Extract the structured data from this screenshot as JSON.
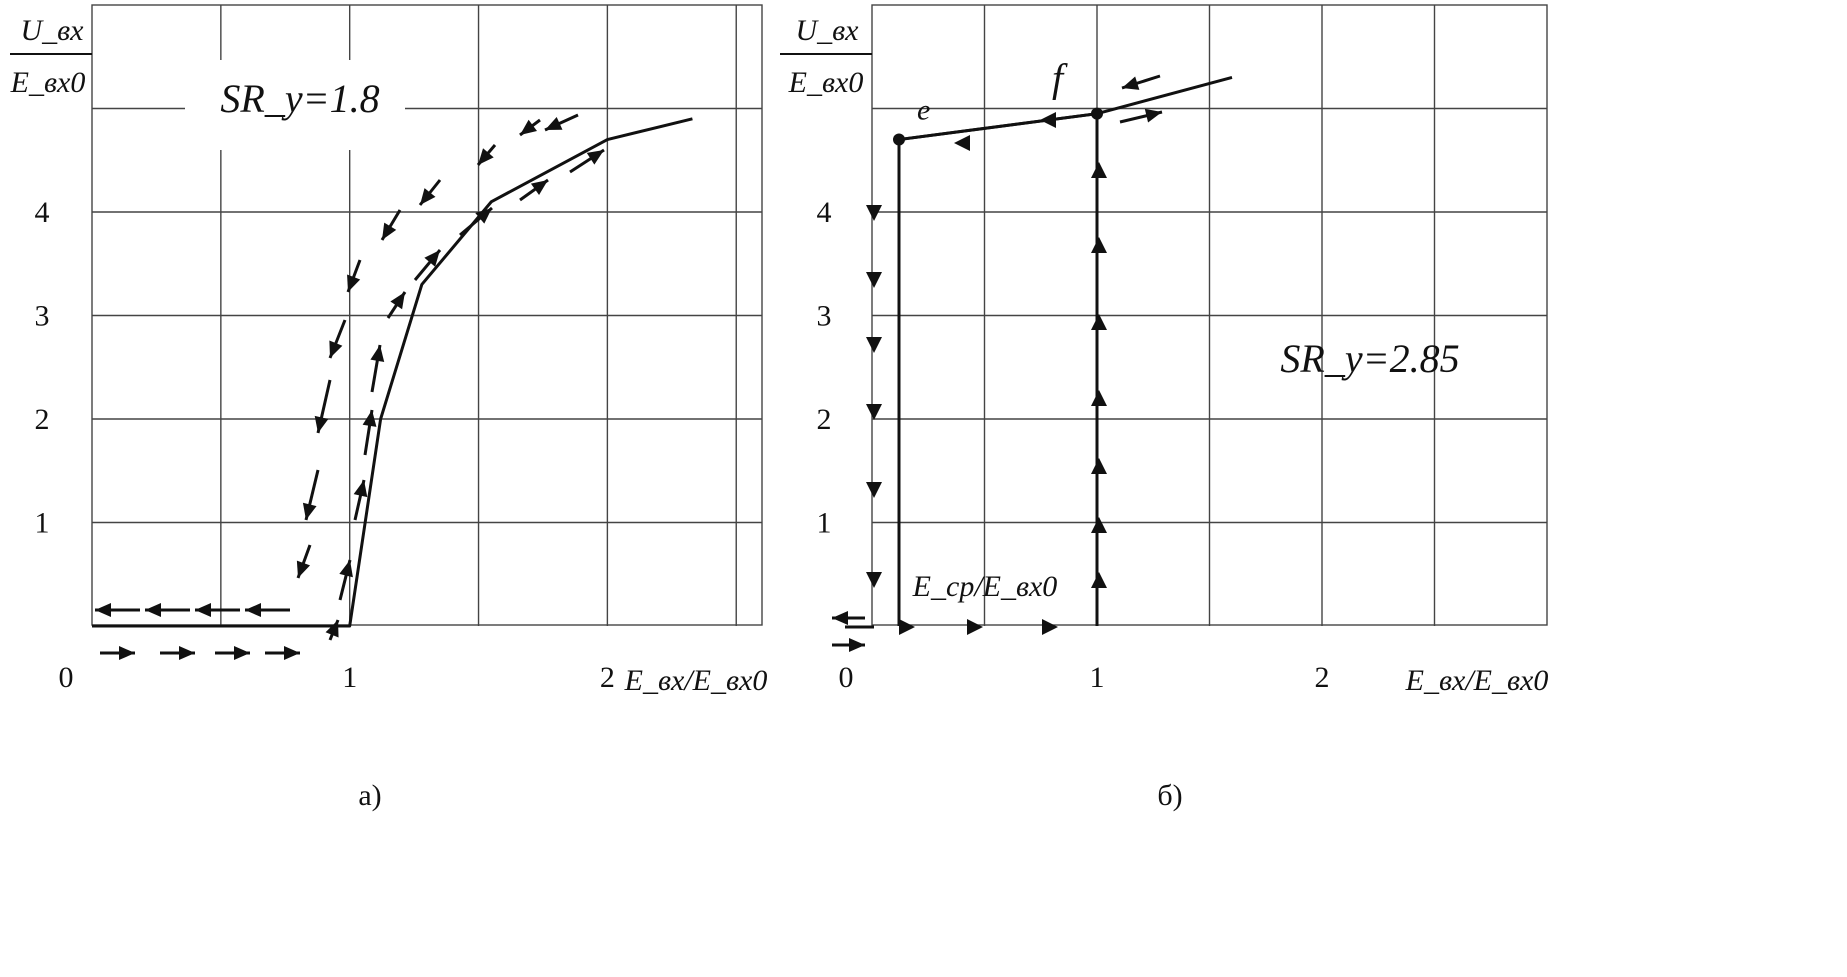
{
  "chart_data": [
    {
      "type": "line",
      "caption": "а)",
      "annotation": "SR_y=1.8",
      "ylabel_num": "U_вх",
      "ylabel_den": "E_вх0",
      "xlabel": "E_вх/E_вх0",
      "xlim": [
        0,
        2.6
      ],
      "ylim": [
        0,
        6
      ],
      "x_ticks": [
        "0",
        "1",
        "2"
      ],
      "y_ticks": [
        "1",
        "2",
        "3",
        "4"
      ],
      "series": [
        {
          "x": [
            0.0,
            0.7,
            0.8,
            0.9,
            1.0,
            1.12,
            1.28,
            1.55,
            2.0,
            2.33
          ],
          "y": [
            0.0,
            0.0,
            0.0,
            0.0,
            0.0,
            2.0,
            3.3,
            4.1,
            4.7,
            4.9
          ]
        }
      ]
    },
    {
      "type": "line",
      "caption": "б)",
      "annotation": "SR_y=2.85",
      "inner_label": "E_ср/E_вх0",
      "point_labels": [
        "e",
        "f"
      ],
      "ylabel_num": "U_вх",
      "ylabel_den": "E_вх0",
      "xlabel": "E_вх/E_вх0",
      "xlim": [
        0,
        3.0
      ],
      "ylim": [
        0,
        6
      ],
      "x_ticks": [
        "0",
        "1",
        "2"
      ],
      "y_ticks": [
        "1",
        "2",
        "3",
        "4"
      ],
      "series": [
        {
          "x": [
            0.12,
            0.12,
            1.0,
            1.0
          ],
          "y": [
            0.0,
            4.7,
            4.95,
            0.0
          ]
        },
        {
          "x": [
            0.12,
            1.0,
            1.6
          ],
          "y": [
            4.7,
            4.95,
            5.3
          ]
        }
      ],
      "points": [
        {
          "label": "e",
          "x": 0.12,
          "y": 4.7
        },
        {
          "label": "f",
          "x": 1.0,
          "y": 4.95
        }
      ]
    }
  ]
}
